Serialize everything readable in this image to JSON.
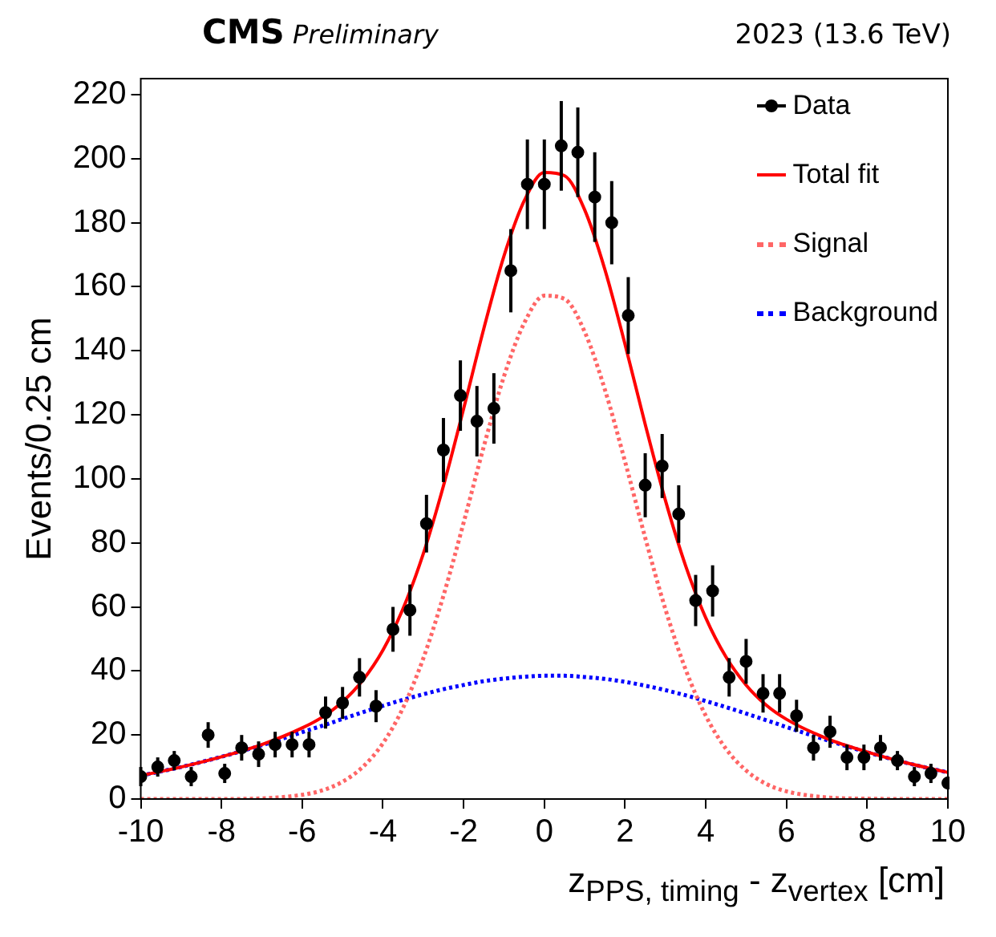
{
  "chart_data": {
    "type": "scatter",
    "title": "CMS",
    "subtitle": "Preliminary",
    "annotations": [
      "2023 (13.6 TeV)"
    ],
    "xlabel": "z$_{PPS, timing}$ - z$_{vertex}$ [cm]",
    "ylabel": "Events/0.25 cm",
    "xlim": [
      -10,
      10
    ],
    "xticks": [
      -10,
      -8,
      -6,
      -4,
      -2,
      0,
      2,
      4,
      6,
      8,
      10
    ],
    "ylim": [
      0,
      225
    ],
    "yticks": [
      0,
      20,
      40,
      60,
      80,
      100,
      120,
      140,
      160,
      180,
      200,
      220
    ],
    "grid": false,
    "legend": "top right",
    "series": [
      {
        "name": "Data",
        "color": "#000000",
        "marker": "circle",
        "x": [
          -10,
          -9.58,
          -9.17,
          -8.75,
          -8.33,
          -7.92,
          -7.5,
          -7.08,
          -6.67,
          -6.25,
          -5.83,
          -5.42,
          -5,
          -4.58,
          -4.17,
          -3.75,
          -3.33,
          -2.92,
          -2.5,
          -2.08,
          -1.67,
          -1.25,
          -0.83,
          -0.42,
          0,
          0.42,
          0.83,
          1.25,
          1.67,
          2.08,
          2.5,
          2.92,
          3.33,
          3.75,
          4.17,
          4.58,
          5,
          5.42,
          5.83,
          6.25,
          6.67,
          7.08,
          7.5,
          7.92,
          8.33,
          8.75,
          9.17,
          9.58,
          10
        ],
        "values": [
          7,
          10,
          12,
          7,
          20,
          8,
          16,
          14,
          17,
          17,
          17,
          27,
          30,
          38,
          29,
          53,
          59,
          86,
          109,
          126,
          118,
          122,
          165,
          192,
          192,
          204,
          202,
          188,
          180,
          151,
          98,
          104,
          89,
          62,
          65,
          38,
          43,
          33,
          33,
          26,
          16,
          21,
          13,
          13,
          16,
          12,
          7,
          8,
          5
        ],
        "errors": [
          3,
          3,
          3,
          3,
          4,
          3,
          4,
          4,
          4,
          4,
          4,
          5,
          5,
          6,
          5,
          7,
          8,
          9,
          10,
          11,
          11,
          11,
          13,
          14,
          14,
          14,
          14,
          14,
          13,
          12,
          10,
          10,
          9,
          8,
          8,
          6,
          7,
          6,
          6,
          5,
          4,
          5,
          4,
          4,
          4,
          3,
          3,
          3,
          2
        ]
      },
      {
        "name": "Total fit",
        "type": "line",
        "color": "#ff0000",
        "line_style": "solid",
        "marker": "none",
        "x": [
          -10,
          -9,
          -8,
          -7,
          -6,
          -5.5,
          -5,
          -4.5,
          -4,
          -3.5,
          -3,
          -2.5,
          -2,
          -1.5,
          -1,
          -0.5,
          0,
          0.5,
          1,
          1.5,
          2,
          2.5,
          3,
          3.5,
          4,
          4.5,
          5,
          5.5,
          6,
          7,
          8,
          9,
          10
        ],
        "values": [
          7.3,
          10.0,
          13.2,
          17.0,
          22.2,
          25.6,
          30.4,
          37.1,
          46.5,
          59.5,
          76.6,
          97.8,
          121.9,
          146.9,
          169.6,
          186.8,
          195.7,
          194.7,
          184.0,
          165.4,
          142.0,
          117.0,
          93.3,
          72.9,
          56.6,
          44.4,
          35.6,
          29.3,
          24.9,
          18.9,
          14.7,
          11.2,
          8.3
        ]
      },
      {
        "name": "Signal",
        "type": "line",
        "color": "#ff6666",
        "line_style": "dotted",
        "marker": "none",
        "x": [
          -10,
          -9,
          -8,
          -7,
          -6,
          -5.5,
          -5,
          -4.5,
          -4,
          -3.5,
          -3,
          -2.5,
          -2,
          -1.5,
          -1,
          -0.5,
          0,
          0.5,
          1,
          1.5,
          2,
          2.5,
          3,
          3.5,
          4,
          4.5,
          5,
          5.5,
          6,
          7,
          8,
          9,
          10
        ],
        "values": [
          0,
          0,
          0,
          0.2,
          1.3,
          2.7,
          5.4,
          10.0,
          17.4,
          28.5,
          43.9,
          63.5,
          86.3,
          110.1,
          132.0,
          148.6,
          157.2,
          156.2,
          145.9,
          127.9,
          105.4,
          81.6,
          59.3,
          40.5,
          26.0,
          15.7,
          8.9,
          4.7,
          2.4,
          0.5,
          0.1,
          0,
          0
        ]
      },
      {
        "name": "Background",
        "type": "line",
        "color": "#0000ff",
        "line_style": "dotted",
        "marker": "none",
        "x": [
          -10,
          -9,
          -8,
          -7,
          -6,
          -5.5,
          -5,
          -4.5,
          -4,
          -3.5,
          -3,
          -2.5,
          -2,
          -1.5,
          -1,
          -0.5,
          0,
          0.5,
          1,
          1.5,
          2,
          2.5,
          3,
          3.5,
          4,
          4.5,
          5,
          5.5,
          6,
          7,
          8,
          9,
          10
        ],
        "values": [
          7.3,
          10.0,
          13.2,
          16.8,
          20.9,
          22.9,
          25.0,
          27.1,
          29.1,
          31.0,
          32.7,
          34.3,
          35.6,
          36.8,
          37.6,
          38.2,
          38.5,
          38.5,
          38.1,
          37.5,
          36.6,
          35.4,
          34.0,
          32.4,
          30.6,
          28.7,
          26.7,
          24.6,
          22.5,
          18.4,
          14.6,
          11.2,
          8.3
        ]
      }
    ]
  }
}
